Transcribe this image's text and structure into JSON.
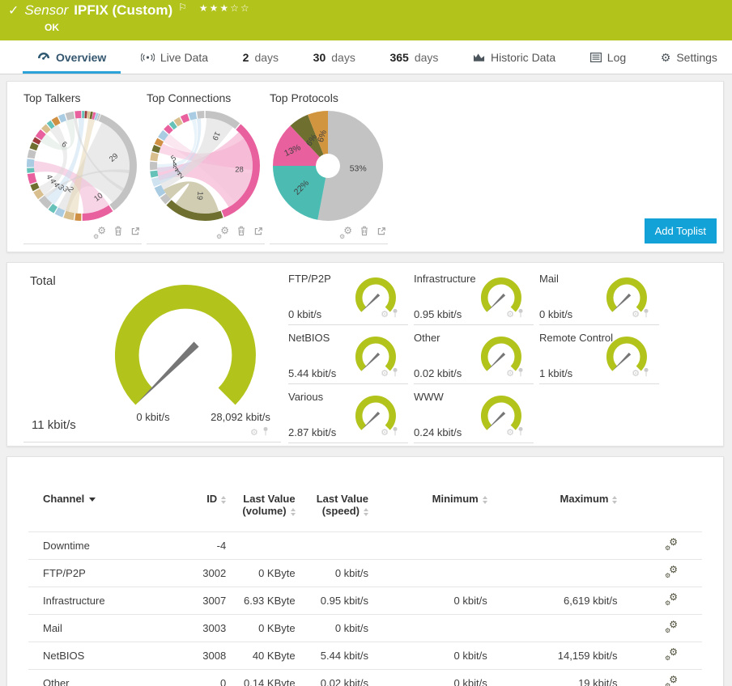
{
  "header": {
    "checkmark": "✓",
    "type_label": "Sensor",
    "title": "IPFIX (Custom)",
    "flag": "⚐",
    "stars": "★★★☆☆",
    "status": "OK"
  },
  "tabs": [
    {
      "label": "Overview"
    },
    {
      "label": "Live Data"
    },
    {
      "num": "2",
      "label": "days"
    },
    {
      "num": "30",
      "label": "days"
    },
    {
      "num": "365",
      "label": "days"
    },
    {
      "label": "Historic Data"
    },
    {
      "label": "Log"
    },
    {
      "label": "Settings"
    }
  ],
  "toplists": {
    "add_button_label": "Add Toplist"
  },
  "colors": {
    "ok_green": "#b2c31c",
    "accent_blue": "#12a2d7",
    "gauge_green": "#b2c31c"
  },
  "chart_data": [
    {
      "id": "top-talkers",
      "type": "chord",
      "title": "Top Talkers",
      "segments": [
        {
          "d": 3,
          "c": "#66c2b8"
        },
        {
          "d": 3,
          "c": "#9e3b3b"
        },
        {
          "d": 3,
          "c": "#d9bf8e"
        },
        {
          "d": 3,
          "c": "#6f7030"
        },
        {
          "d": 3,
          "c": "#e8609e"
        },
        {
          "d": 3,
          "c": "#a9cce3"
        },
        {
          "d": 2,
          "c": "#c3c3c3"
        },
        {
          "d": 125,
          "c": "#c3c3c3"
        },
        {
          "d": 35,
          "c": "#e8609e"
        },
        {
          "d": 8,
          "c": "#cf9044"
        },
        {
          "d": 12,
          "c": "#d9bf8e"
        },
        {
          "d": 10,
          "c": "#a9cce3"
        },
        {
          "d": 8,
          "c": "#66c2b8"
        },
        {
          "d": 14,
          "c": "#c3c3c3"
        },
        {
          "d": 10,
          "c": "#d9bf8e"
        },
        {
          "d": 8,
          "c": "#6f7030"
        },
        {
          "d": 12,
          "c": "#e8609e"
        },
        {
          "d": 6,
          "c": "#66c2b8"
        },
        {
          "d": 10,
          "c": "#a9cce3"
        },
        {
          "d": 10,
          "c": "#c3c3c3"
        },
        {
          "d": 8,
          "c": "#6f7030"
        },
        {
          "d": 6,
          "c": "#9e3b3b"
        },
        {
          "d": 10,
          "c": "#e8609e"
        },
        {
          "d": 8,
          "c": "#d9bf8e"
        },
        {
          "d": 6,
          "c": "#66c2b8"
        },
        {
          "d": 8,
          "c": "#cf9044"
        },
        {
          "d": 8,
          "c": "#a9cce3"
        },
        {
          "d": 10,
          "c": "#c3c3c3"
        },
        {
          "d": 8,
          "c": "#e8609e"
        }
      ],
      "ribbons": [
        {
          "a": [
            25,
            140
          ],
          "b": [
            196,
            210
          ],
          "c": "#d8d8d8",
          "o": 0.55
        },
        {
          "a": [
            145,
            178
          ],
          "b": [
            262,
            276
          ],
          "c": "#f3b9d5",
          "o": 0.6
        },
        {
          "a": [
            185,
            200
          ],
          "b": [
            8,
            16
          ],
          "c": "#e3d3ae",
          "o": 0.5
        },
        {
          "a": [
            215,
            228
          ],
          "b": [
            356,
            363
          ],
          "c": "#c5ddf0",
          "o": 0.5
        },
        {
          "a": [
            232,
            244
          ],
          "b": [
            318,
            330
          ],
          "c": "#d8d8d8",
          "o": 0.45
        },
        {
          "a": [
            300,
            312
          ],
          "b": [
            340,
            350
          ],
          "c": "#cfe0d8",
          "o": 0.4
        },
        {
          "a": [
            95,
            99
          ],
          "b": [
            228,
            232
          ],
          "c": "#cfcfcf",
          "o": 0.5
        },
        {
          "a": [
            118,
            122
          ],
          "b": [
            350,
            354
          ],
          "c": "#cfcfcf",
          "o": 0.5
        }
      ],
      "labels": [
        {
          "t": "6",
          "a": 320,
          "r": 0.5,
          "rot": 35
        },
        {
          "t": "29",
          "a": 76,
          "r": 0.6,
          "rot": -40
        },
        {
          "t": "10",
          "a": 152,
          "r": 0.65,
          "rot": -38
        },
        {
          "t": "2",
          "a": 205,
          "r": 0.48,
          "rot": 45
        },
        {
          "t": "3",
          "a": 215,
          "r": 0.52,
          "rot": 50
        },
        {
          "t": "3",
          "a": 224,
          "r": 0.55,
          "rot": 55
        },
        {
          "t": "4",
          "a": 233,
          "r": 0.58,
          "rot": 60
        },
        {
          "t": "4",
          "a": 242,
          "r": 0.6,
          "rot": 65
        },
        {
          "t": "4",
          "a": 251,
          "r": 0.63,
          "rot": 70
        }
      ]
    },
    {
      "id": "top-connections",
      "type": "chord",
      "title": "Top Connections",
      "segments": [
        {
          "d": 40,
          "c": "#c3c3c3"
        },
        {
          "d": 120,
          "c": "#e8609e"
        },
        {
          "d": 65,
          "c": "#6f7030"
        },
        {
          "d": 10,
          "c": "#c3c3c3"
        },
        {
          "d": 12,
          "c": "#a9cce3"
        },
        {
          "d": 10,
          "c": "#cfe2f0"
        },
        {
          "d": 8,
          "c": "#66c2b8"
        },
        {
          "d": 10,
          "c": "#c3c3c3"
        },
        {
          "d": 10,
          "c": "#d9bf8e"
        },
        {
          "d": 8,
          "c": "#6f7030"
        },
        {
          "d": 8,
          "c": "#cf9044"
        },
        {
          "d": 10,
          "c": "#a9cce3"
        },
        {
          "d": 8,
          "c": "#e8609e"
        },
        {
          "d": 6,
          "c": "#66c2b8"
        },
        {
          "d": 8,
          "c": "#d9bf8e"
        },
        {
          "d": 9,
          "c": "#e8609e"
        },
        {
          "d": 9,
          "c": "#a9cce3"
        },
        {
          "d": 9,
          "c": "#c3c3c3"
        }
      ],
      "ribbons": [
        {
          "a": [
            45,
            150
          ],
          "b": [
            252,
            268
          ],
          "c": "#f3a8cc",
          "o": 0.6
        },
        {
          "a": [
            55,
            95
          ],
          "b": [
            286,
            298
          ],
          "c": "#f3a8cc",
          "o": 0.45
        },
        {
          "a": [
            100,
            140
          ],
          "b": [
            300,
            312
          ],
          "c": "#f3c4da",
          "o": 0.4
        },
        {
          "a": [
            163,
            218
          ],
          "b": [
            226,
            240
          ],
          "c": "#b7b28a",
          "o": 0.65
        },
        {
          "a": [
            2,
            36
          ],
          "b": [
            240,
            252
          ],
          "c": "#dcdcdc",
          "o": 0.6
        },
        {
          "a": [
            248,
            258
          ],
          "b": [
            350,
            355
          ],
          "c": "#c5ddf0",
          "o": 0.5
        },
        {
          "a": [
            262,
            272
          ],
          "b": [
            344,
            349
          ],
          "c": "#cfe6f5",
          "o": 0.45
        }
      ],
      "labels": [
        {
          "t": "19",
          "a": 20,
          "r": 0.58,
          "rot": 115
        },
        {
          "t": "28",
          "a": 97,
          "r": 0.63,
          "rot": 0
        },
        {
          "t": "19",
          "a": 190,
          "r": 0.55,
          "rot": 95
        },
        {
          "t": "2",
          "a": 247,
          "r": 0.47,
          "rot": -35
        },
        {
          "t": "3",
          "a": 256,
          "r": 0.5,
          "rot": -35
        },
        {
          "t": "3",
          "a": 264,
          "r": 0.53,
          "rot": -35
        },
        {
          "t": "4",
          "a": 273,
          "r": 0.55,
          "rot": -35
        },
        {
          "t": "5",
          "a": 283,
          "r": 0.58,
          "rot": -35
        }
      ]
    },
    {
      "id": "top-protocols",
      "type": "donut",
      "title": "Top Protocols",
      "hole": 0.22,
      "slices": [
        {
          "v": 53,
          "c": "#c3c3c3",
          "label": "53%",
          "lr": 0.55,
          "rot": 0
        },
        {
          "v": 22,
          "c": "#4cbcb3",
          "label": "22%",
          "lr": 0.62,
          "rot": -45
        },
        {
          "v": 13,
          "c": "#e8609e",
          "label": "13%",
          "lr": 0.7,
          "rot": -25
        },
        {
          "v": 6,
          "c": "#6f7030",
          "label": "6%",
          "lr": 0.55,
          "rot": -55
        },
        {
          "v": 6,
          "c": "#d1953f",
          "label": "6%",
          "lr": 0.55,
          "rot": -72
        }
      ]
    },
    {
      "id": "total",
      "type": "gauge",
      "title": "Total",
      "value": 11,
      "min": 0,
      "max": 28092,
      "unit": "kbit/s",
      "value_label": "11 kbit/s",
      "min_label": "0 kbit/s",
      "max_label": "28,092 kbit/s",
      "arc_color": "#b2c31c"
    },
    {
      "id": "channel-gauges",
      "type": "gauge-grid",
      "unit": "kbit/s",
      "arc_color": "#b2c31c",
      "items": [
        {
          "name": "FTP/P2P",
          "value": 0,
          "value_label": "0 kbit/s"
        },
        {
          "name": "Infrastructure",
          "value": 0.95,
          "max": 6619,
          "value_label": "0.95 kbit/s"
        },
        {
          "name": "Mail",
          "value": 0,
          "value_label": "0 kbit/s"
        },
        {
          "name": "NetBIOS",
          "value": 5.44,
          "max": 14159,
          "value_label": "5.44 kbit/s"
        },
        {
          "name": "Other",
          "value": 0.02,
          "max": 19,
          "value_label": "0.02 kbit/s"
        },
        {
          "name": "Remote Control",
          "value": 1,
          "value_label": "1 kbit/s"
        },
        {
          "name": "Various",
          "value": 2.87,
          "value_label": "2.87 kbit/s"
        },
        {
          "name": "WWW",
          "value": 0.24,
          "value_label": "0.24 kbit/s"
        }
      ]
    }
  ],
  "table": {
    "columns": [
      {
        "label": "Channel",
        "sorted": true
      },
      {
        "label": "ID"
      },
      {
        "label": "Last Value\n(volume)"
      },
      {
        "label": "Last Value\n(speed)"
      },
      {
        "label": "Minimum"
      },
      {
        "label": "Maximum"
      }
    ],
    "rows": [
      {
        "channel": "Downtime",
        "id": "-4",
        "vol": "",
        "speed": "",
        "min": "",
        "max": ""
      },
      {
        "channel": "FTP/P2P",
        "id": "3002",
        "vol": "0 KByte",
        "speed": "0 kbit/s",
        "min": "",
        "max": ""
      },
      {
        "channel": "Infrastructure",
        "id": "3007",
        "vol": "6.93 KByte",
        "speed": "0.95 kbit/s",
        "min": "0 kbit/s",
        "max": "6,619 kbit/s"
      },
      {
        "channel": "Mail",
        "id": "3003",
        "vol": "0 KByte",
        "speed": "0 kbit/s",
        "min": "",
        "max": ""
      },
      {
        "channel": "NetBIOS",
        "id": "3008",
        "vol": "40 KByte",
        "speed": "5.44 kbit/s",
        "min": "0 kbit/s",
        "max": "14,159 kbit/s"
      },
      {
        "channel": "Other",
        "id": "0",
        "vol": "0.14 KByte",
        "speed": "0.02 kbit/s",
        "min": "0 kbit/s",
        "max": "19 kbit/s"
      }
    ]
  }
}
